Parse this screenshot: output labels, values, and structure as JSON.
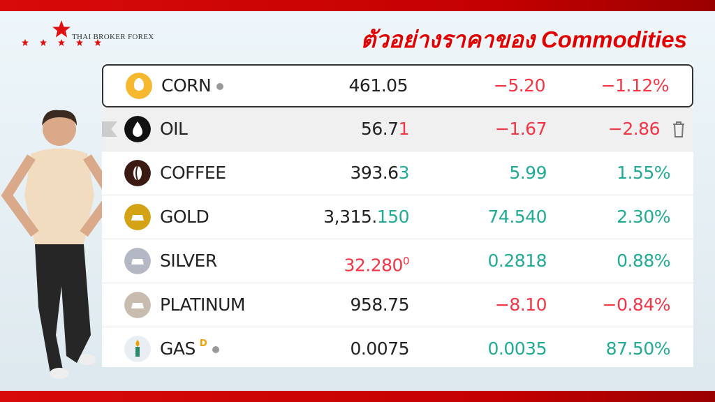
{
  "brand": {
    "name": "THAI BROKER FOREX"
  },
  "title": "ตัวอย่างราคาของ Commodities",
  "colors": {
    "up": "#22ab94",
    "down": "#f23645",
    "brand": "#d80a0a"
  },
  "rows": [
    {
      "name": "CORN",
      "icon": "corn-icon",
      "price_main": "461.05",
      "price_tail": "",
      "change": "−5.20",
      "pct": "−1.12%",
      "dir": "down",
      "dot": true
    },
    {
      "name": "OIL",
      "icon": "oil-drop-icon",
      "price_main": "56.7",
      "price_tail": "1",
      "change": "−1.67",
      "pct": "−2.86",
      "dir": "down"
    },
    {
      "name": "COFFEE",
      "icon": "coffee-bean-icon",
      "price_main": "393.6",
      "price_tail": "3",
      "change": "5.99",
      "pct": "1.55%",
      "dir": "up"
    },
    {
      "name": "GOLD",
      "icon": "gold-bar-icon",
      "price_main": "3,315.",
      "price_tail": "150",
      "change": "74.540",
      "pct": "2.30%",
      "dir": "up"
    },
    {
      "name": "SILVER",
      "icon": "silver-bar-icon",
      "price_main": "32.280",
      "price_tail": "0",
      "change": "0.2818",
      "pct": "0.88%",
      "dir": "up"
    },
    {
      "name": "PLATINUM",
      "icon": "platinum-bar-icon",
      "price_main": "958.75",
      "price_tail": "",
      "change": "−8.10",
      "pct": "−0.84%",
      "dir": "down"
    },
    {
      "name": "GAS",
      "icon": "gas-icon",
      "price_main": "0.0075",
      "price_tail": "",
      "change": "0.0035",
      "pct": "87.50%",
      "dir": "up",
      "badge": "D",
      "dot": true
    }
  ]
}
